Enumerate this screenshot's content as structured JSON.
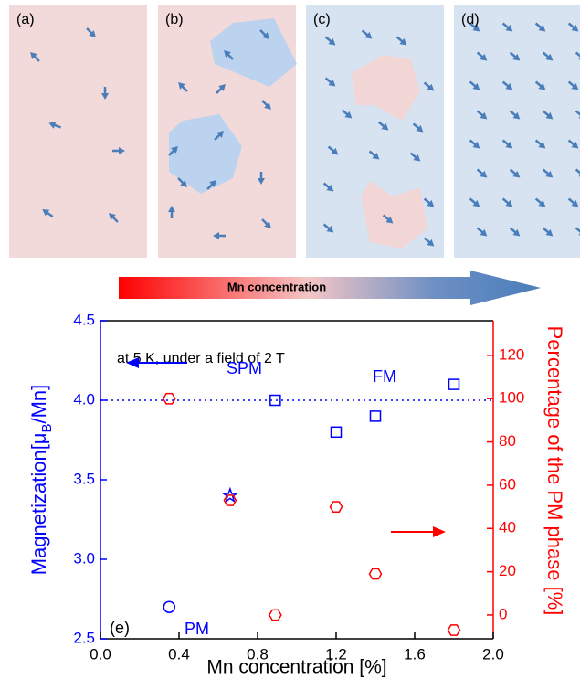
{
  "panels": [
    "(a)",
    "(b)",
    "(c)",
    "(d)"
  ],
  "arrow_label": "Mn concentration",
  "chart_data": {
    "type": "scatter",
    "xlabel": "Mn concentration [%]",
    "ylabel": [
      "Magnetization[μ",
      "B",
      "/Mn]"
    ],
    "y2label": "Percentage of the PM phase [%]",
    "annotations": [
      "at 5 K, under a field of 2 T",
      "FM",
      "SPM",
      "PM",
      "(e)"
    ],
    "xlim": [
      0,
      2
    ],
    "xticks": [
      {
        "value": 0,
        "label": "0.0"
      },
      0.4,
      0.8,
      1.2,
      1.6,
      {
        "value": 2,
        "label": "2.0"
      }
    ],
    "ylim": [
      2.5,
      4.5
    ],
    "yticks": [
      2.5,
      {
        "value": 3,
        "label": "3.0"
      },
      3.5,
      {
        "value": 4,
        "label": "4.0"
      },
      4.5
    ],
    "y2lim": [
      -11,
      136
    ],
    "y2ticks": [
      0,
      20,
      40,
      60,
      80,
      100,
      120
    ],
    "hline": 4,
    "series": [
      {
        "color": "#0000ff",
        "markers": [
          "circle",
          "star",
          "square",
          "square",
          "square",
          "square"
        ],
        "x": [
          0.35,
          0.66,
          0.89,
          1.2,
          1.4,
          1.8
        ],
        "values": [
          2.7,
          3.4,
          4.0,
          3.8,
          3.9,
          4.1
        ]
      },
      {
        "color": "#ff0000",
        "marker": "hexagon",
        "axis": "y2",
        "x": [
          0.35,
          0.66,
          0.89,
          1.2,
          1.4,
          1.8
        ],
        "values": [
          100,
          53,
          0,
          50,
          19,
          -7
        ]
      }
    ]
  }
}
